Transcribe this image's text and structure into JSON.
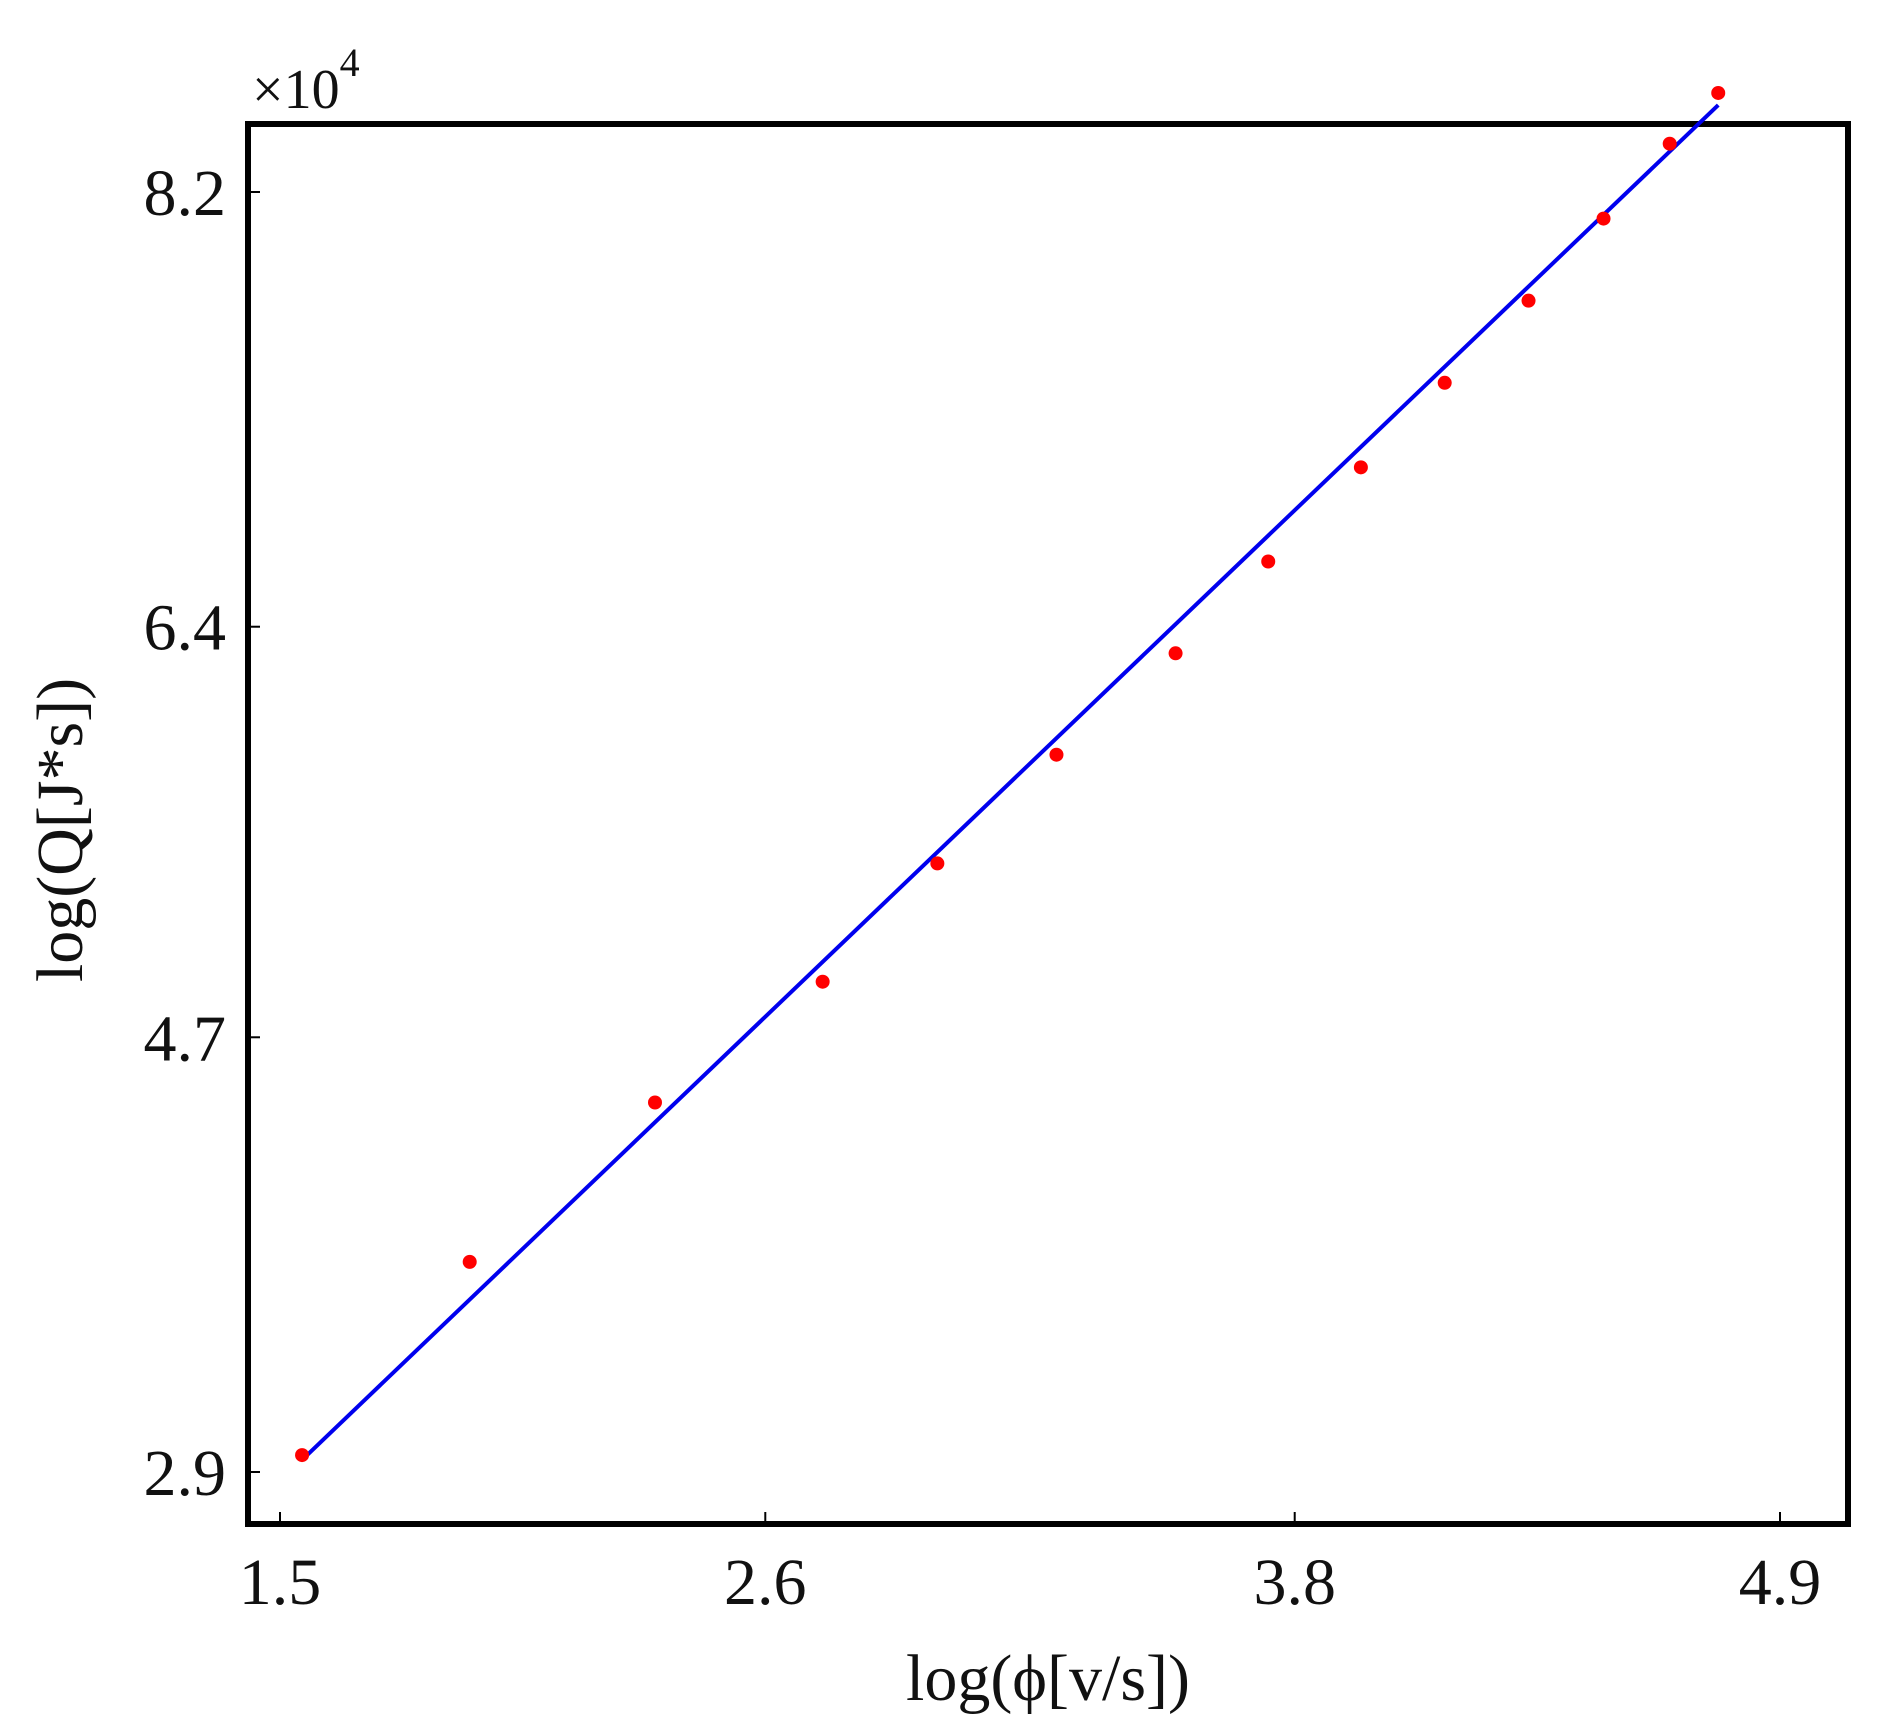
{
  "chart_data": {
    "type": "scatter",
    "xlabel": "log(ϕ[v/s])",
    "ylabel": "log(Q[J*s])",
    "y_multiplier": {
      "base": "×10",
      "exponent": "4"
    },
    "x_ticks": [
      "1.5",
      "2.6",
      "3.8",
      "4.9"
    ],
    "y_ticks": [
      "2.9",
      "4.7",
      "6.4",
      "8.2"
    ],
    "xlim": [
      1.5,
      4.9
    ],
    "ylim": [
      2.9,
      8.2
    ],
    "grid": false,
    "series": [
      {
        "kind": "points",
        "color": "#ff0000",
        "x": [
          1.55,
          1.93,
          2.35,
          2.73,
          2.99,
          3.26,
          3.53,
          3.74,
          3.95,
          4.14,
          4.33,
          4.5,
          4.65,
          4.76
        ],
        "y": [
          2.97,
          3.77,
          4.43,
          4.93,
          5.42,
          5.87,
          6.29,
          6.67,
          7.06,
          7.41,
          7.75,
          8.09,
          8.4,
          8.61
        ]
      },
      {
        "kind": "fit-line",
        "color": "#0000ee",
        "x": [
          1.55,
          4.76
        ],
        "y": [
          2.95,
          8.56
        ]
      }
    ]
  }
}
